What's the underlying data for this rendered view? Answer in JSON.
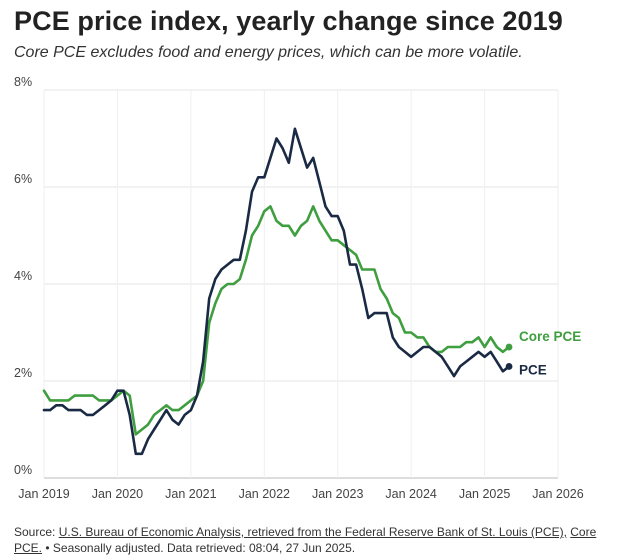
{
  "header": {
    "title": "PCE price index, yearly change since 2019",
    "subtitle": "Core PCE excludes food and energy prices, which can be more volatile."
  },
  "footer": {
    "source_label": "Source:",
    "source_link": "U.S. Bureau of Economic Analysis, retrieved from the Federal Reserve Bank of St. Louis (PCE),",
    "core_link": "Core PCE.",
    "note": "• Seasonally adjusted. Data retrieved: 08:04, 27 Jun 2025."
  },
  "chart_data": {
    "type": "line",
    "title": "PCE price index, yearly change since 2019",
    "xlabel": "",
    "ylabel": "",
    "x_start": "2019-01",
    "x_step": "monthly",
    "xlim": [
      2019.0,
      2026.0
    ],
    "ylim": [
      0,
      8
    ],
    "yticks": [
      0,
      2,
      4,
      6,
      8
    ],
    "ytick_labels": [
      "0%",
      "2%",
      "4%",
      "6%",
      "8%"
    ],
    "xticks": [
      2019,
      2020,
      2021,
      2022,
      2023,
      2024,
      2025,
      2026
    ],
    "xtick_labels": [
      "Jan 2019",
      "Jan 2020",
      "Jan 2021",
      "Jan 2022",
      "Jan 2023",
      "Jan 2024",
      "Jan 2025",
      "Jan 2026"
    ],
    "grid": true,
    "series": [
      {
        "name": "Core PCE",
        "label": "Core PCE",
        "color": "#3f9e3f",
        "values": [
          1.8,
          1.6,
          1.6,
          1.6,
          1.6,
          1.7,
          1.7,
          1.7,
          1.7,
          1.6,
          1.6,
          1.6,
          1.7,
          1.8,
          1.7,
          0.9,
          1.0,
          1.1,
          1.3,
          1.4,
          1.5,
          1.4,
          1.4,
          1.5,
          1.6,
          1.7,
          2.0,
          3.2,
          3.6,
          3.9,
          4.0,
          4.0,
          4.1,
          4.5,
          5.0,
          5.2,
          5.5,
          5.6,
          5.3,
          5.2,
          5.2,
          5.0,
          5.2,
          5.3,
          5.6,
          5.3,
          5.1,
          4.9,
          4.9,
          4.8,
          4.7,
          4.6,
          4.3,
          4.3,
          4.3,
          3.9,
          3.7,
          3.4,
          3.3,
          3.0,
          3.0,
          2.9,
          2.9,
          2.7,
          2.6,
          2.6,
          2.7,
          2.7,
          2.7,
          2.8,
          2.8,
          2.9,
          2.7,
          2.9,
          2.7,
          2.6,
          2.7
        ],
        "end_label": "Core PCE"
      },
      {
        "name": "PCE",
        "label": "PCE",
        "color": "#1b2a44",
        "values": [
          1.4,
          1.4,
          1.5,
          1.5,
          1.4,
          1.4,
          1.4,
          1.3,
          1.3,
          1.4,
          1.5,
          1.6,
          1.8,
          1.8,
          1.3,
          0.5,
          0.5,
          0.8,
          1.0,
          1.2,
          1.4,
          1.2,
          1.1,
          1.3,
          1.4,
          1.7,
          2.4,
          3.7,
          4.1,
          4.3,
          4.4,
          4.5,
          4.5,
          5.1,
          5.9,
          6.2,
          6.2,
          6.6,
          7.0,
          6.8,
          6.5,
          7.2,
          6.8,
          6.4,
          6.6,
          6.1,
          5.6,
          5.4,
          5.4,
          5.1,
          4.4,
          4.4,
          3.9,
          3.3,
          3.4,
          3.4,
          3.4,
          2.9,
          2.7,
          2.6,
          2.5,
          2.6,
          2.7,
          2.7,
          2.6,
          2.5,
          2.3,
          2.1,
          2.3,
          2.4,
          2.5,
          2.6,
          2.5,
          2.6,
          2.4,
          2.2,
          2.3
        ],
        "end_label": "PCE"
      }
    ]
  }
}
